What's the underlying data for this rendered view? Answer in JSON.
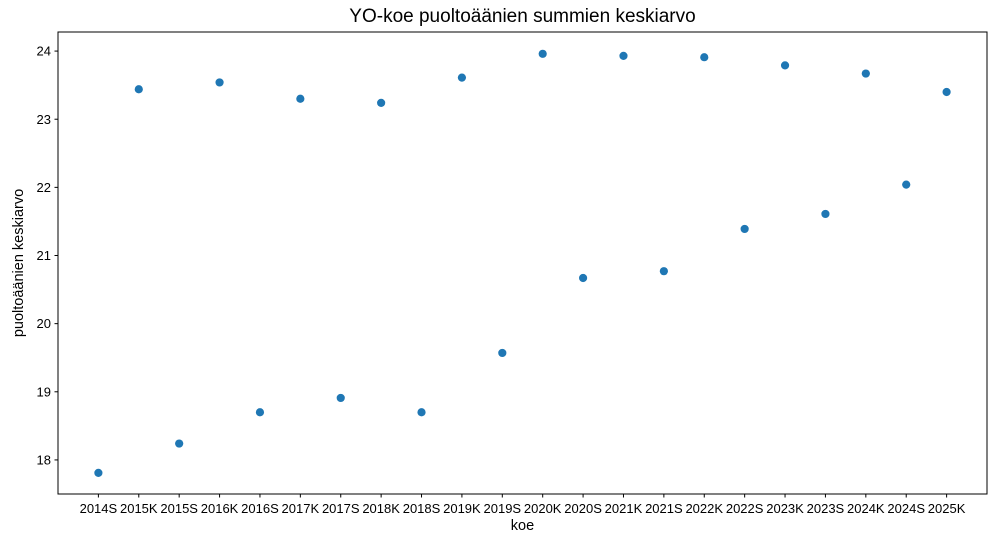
{
  "chart_data": {
    "type": "scatter",
    "title": "YO-koe puoltoäänien summien keskiarvo",
    "xlabel": "koe",
    "ylabel": "puoltoäänien keskiarvo",
    "categories": [
      "2014S",
      "2015K",
      "2015S",
      "2016K",
      "2016S",
      "2017K",
      "2017S",
      "2018K",
      "2018S",
      "2019K",
      "2019S",
      "2020K",
      "2020S",
      "2021K",
      "2021S",
      "2022K",
      "2022S",
      "2023K",
      "2023S",
      "2024K",
      "2024S",
      "2025K"
    ],
    "values": [
      17.81,
      23.44,
      18.24,
      23.54,
      18.7,
      23.3,
      18.91,
      23.24,
      18.7,
      23.61,
      19.57,
      23.96,
      20.67,
      23.93,
      20.77,
      23.91,
      21.39,
      23.79,
      21.61,
      23.67,
      22.04,
      23.4
    ],
    "yticks": [
      18,
      19,
      20,
      21,
      22,
      23,
      24
    ],
    "ylim": [
      17.5,
      24.28
    ],
    "xlim_index": [
      -1.0,
      22.0
    ],
    "marker_color": "#1f77b4",
    "axis_color": "#000000",
    "grid": false,
    "legend_position": "none"
  }
}
